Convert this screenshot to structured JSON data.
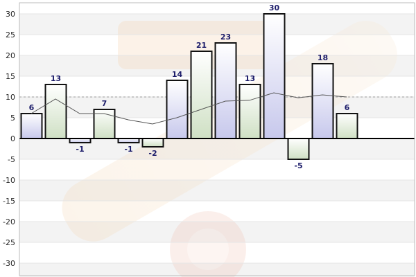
{
  "chart_data": {
    "type": "bar",
    "title": "",
    "xlabel": "",
    "ylabel": "",
    "ylim": [
      -35,
      35
    ],
    "yticks": [
      30,
      25,
      20,
      15,
      10,
      5,
      0,
      -5,
      -10,
      -15,
      -20,
      -25,
      -30
    ],
    "grid": true,
    "values": [
      6,
      13,
      -1,
      7,
      -1,
      -2,
      14,
      21,
      23,
      13,
      30,
      -5,
      18,
      6
    ],
    "data_labels": [
      "6",
      "13",
      "-1",
      "7",
      "-1",
      "-2",
      "14",
      "21",
      "23",
      "13",
      "30",
      "-5",
      "18",
      "6"
    ],
    "bar_fills": [
      "blue",
      "green",
      "blue",
      "green",
      "blue",
      "green",
      "blue",
      "green",
      "blue",
      "green",
      "blue",
      "green",
      "blue",
      "green"
    ],
    "line_series": {
      "type": "line",
      "values": [
        6,
        9.5,
        6,
        6,
        4.5,
        3.5,
        5,
        7,
        9,
        9.2,
        11,
        9.8,
        10.5,
        10
      ]
    },
    "reference_line": {
      "value": 10,
      "style": "dashed"
    },
    "colors": {
      "bar_blue_top": "#ffffff",
      "bar_blue_bottom": "#c7c8ec",
      "bar_green_top": "#ffffff",
      "bar_green_bottom": "#cfe0c4",
      "bar_stroke": "#111111",
      "data_label": "#1c1c6a",
      "line": "#555555",
      "reference_line": "#999999",
      "band": "#f3f3f3"
    }
  }
}
